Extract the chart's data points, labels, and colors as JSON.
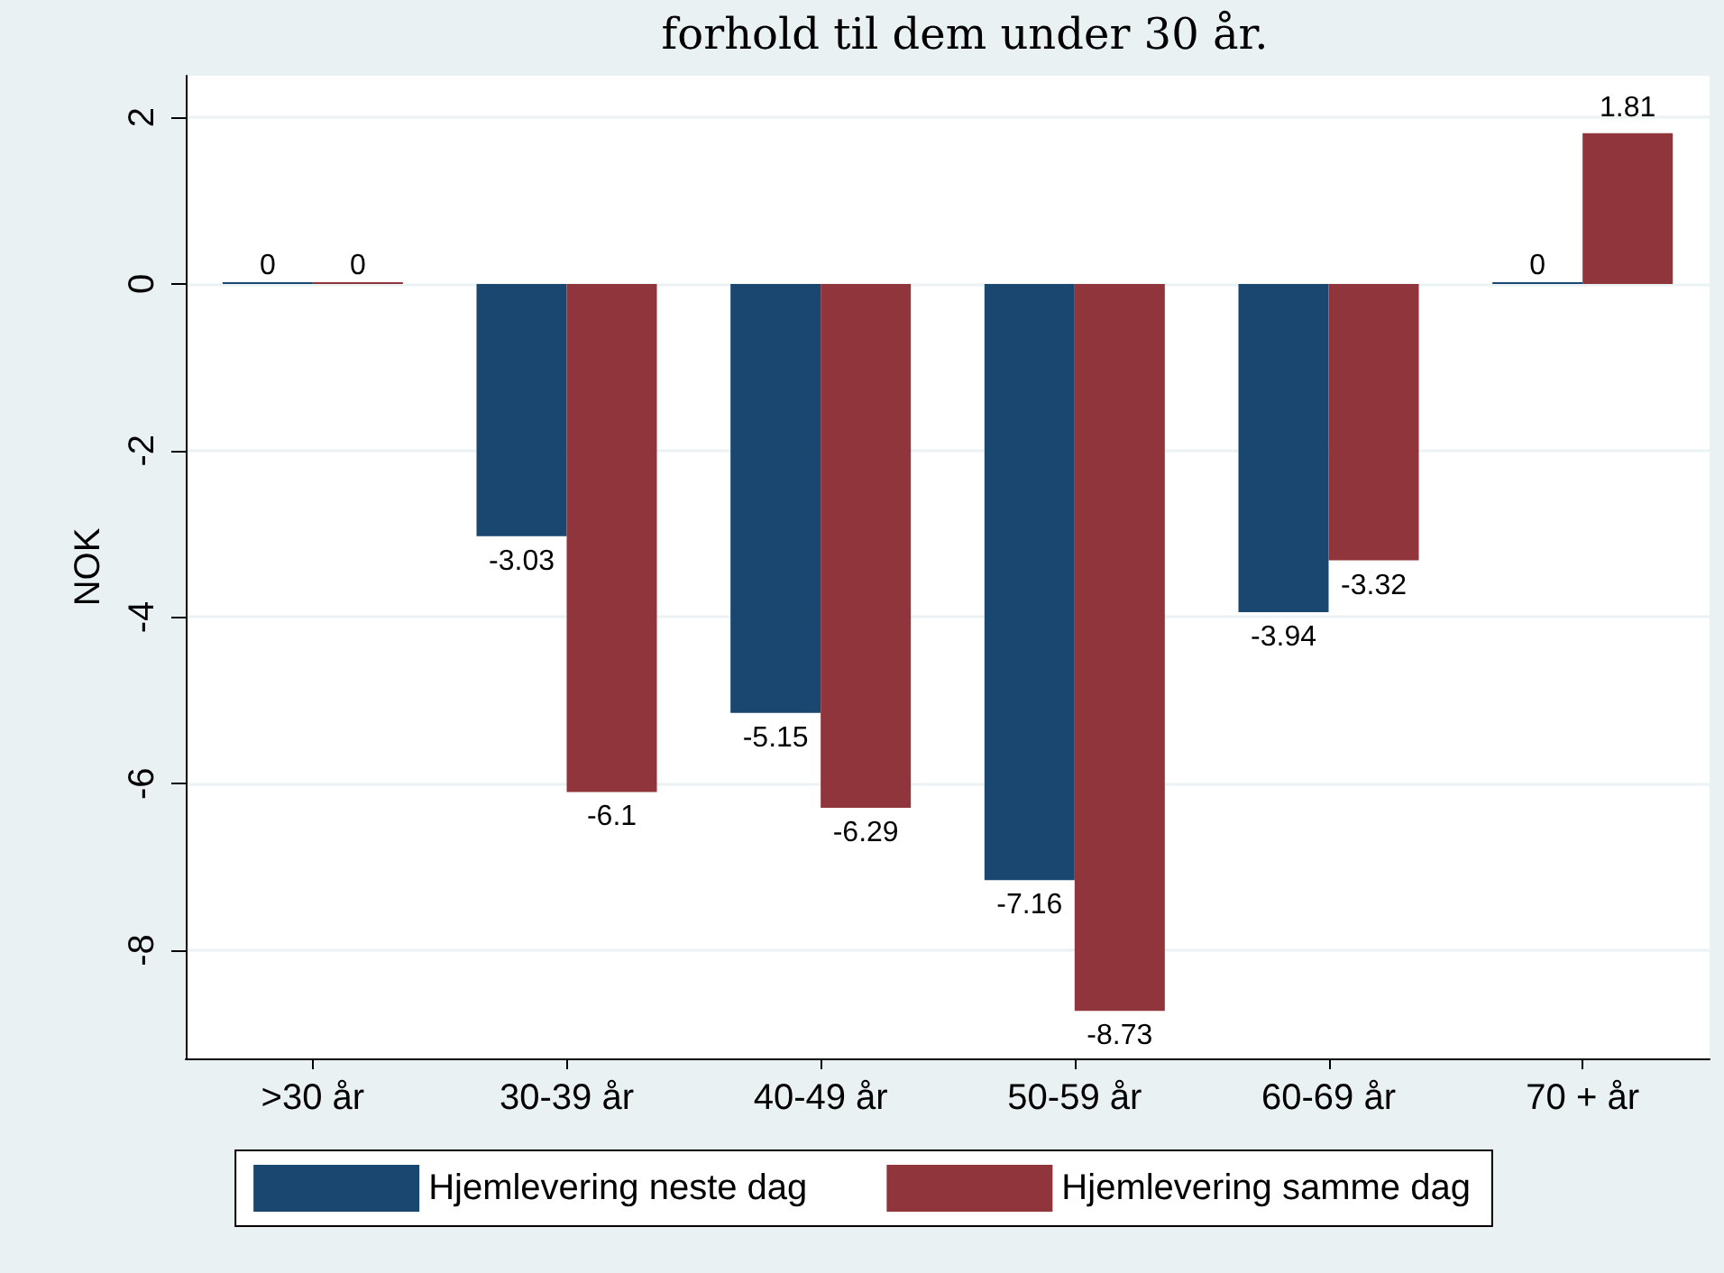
{
  "chart_data": {
    "type": "bar",
    "title": "forhold til dem under 30 år.",
    "ylabel": "NOK",
    "categories": [
      ">30 år",
      "30-39 år",
      "40-49 år",
      "50-59 år",
      "60-69 år",
      "70 + år"
    ],
    "series": [
      {
        "name": "Hjemlevering neste dag",
        "color": "#1a476f",
        "values": [
          0,
          -3.03,
          -5.15,
          -7.16,
          -3.94,
          0
        ]
      },
      {
        "name": "Hjemlevering samme dag",
        "color": "#90353b",
        "values": [
          0,
          -6.1,
          -6.29,
          -8.73,
          -3.32,
          1.81
        ]
      }
    ],
    "ylim": [
      -9.3,
      2.5
    ],
    "yticks": [
      -8,
      -6,
      -4,
      -2,
      0,
      2
    ],
    "grid": "y",
    "legend": "bottom",
    "data_labels": true
  }
}
